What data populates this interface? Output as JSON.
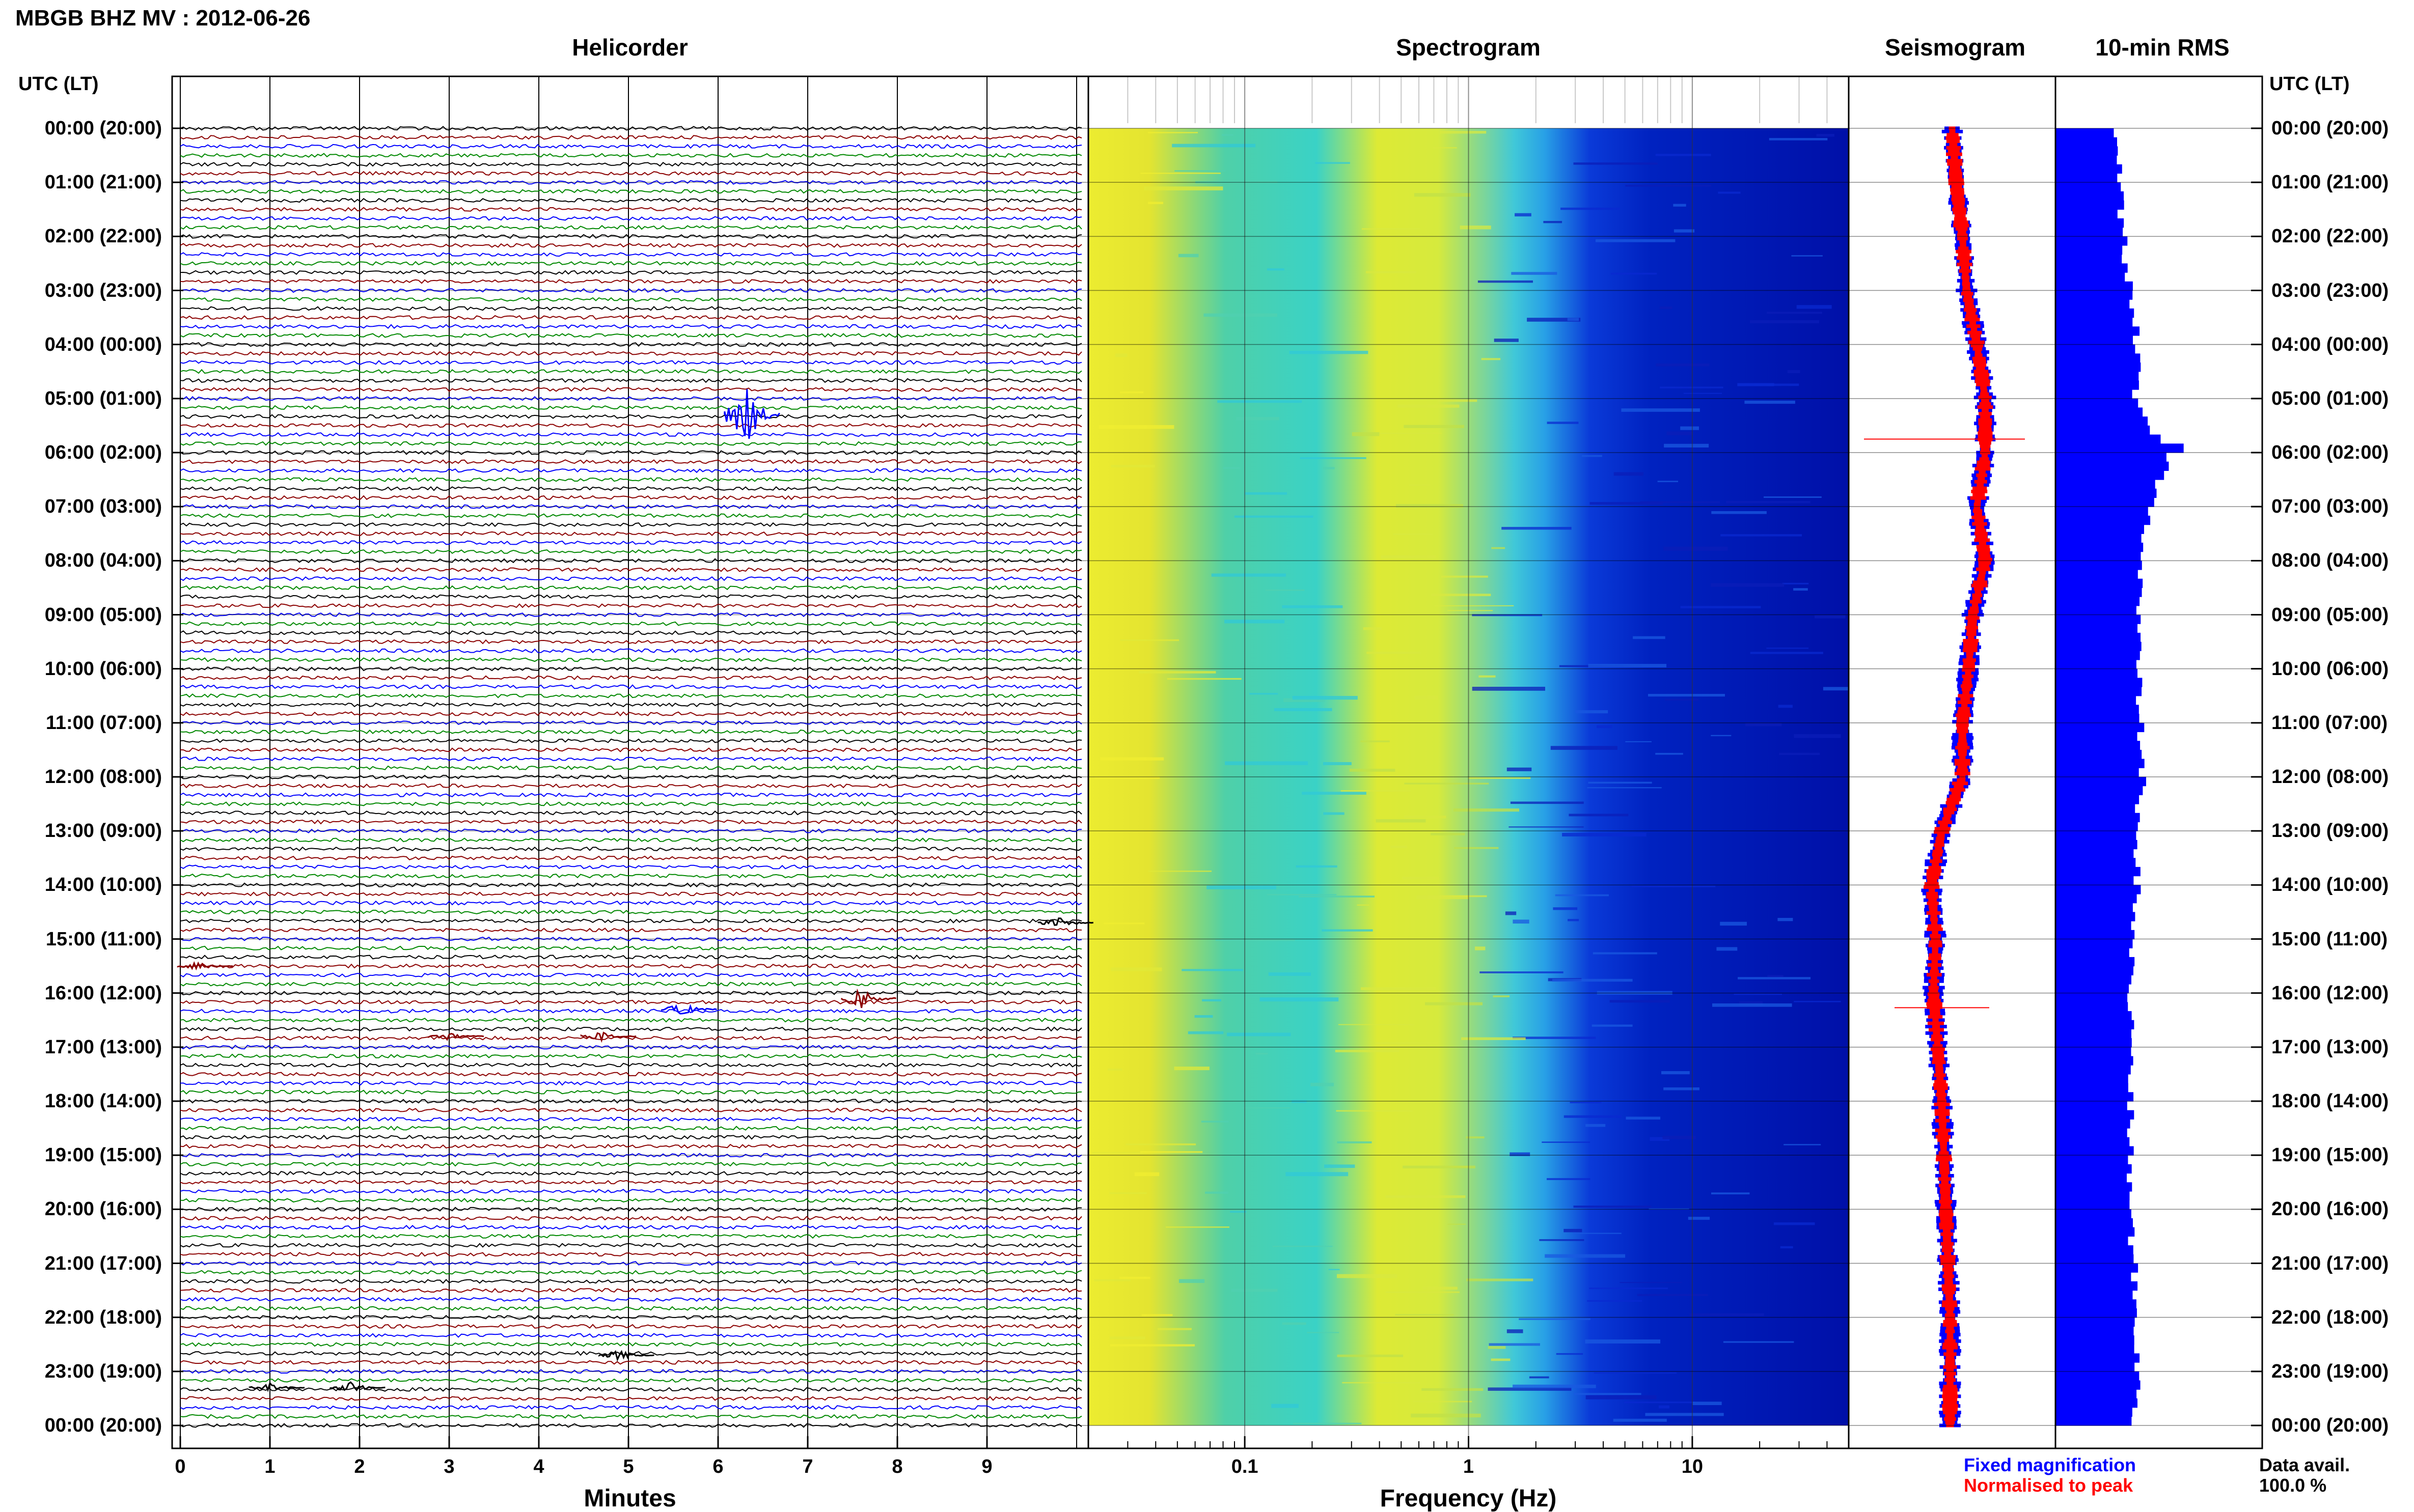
{
  "header": {
    "title": "MBGB BHZ MV : 2012-06-26"
  },
  "panels": {
    "helicorder": "Helicorder",
    "spectrogram": "Spectrogram",
    "seismogram": "Seismogram",
    "rms": "10-min RMS"
  },
  "axes": {
    "utc_header": "UTC (LT)",
    "minutes_label": "Minutes",
    "frequency_label": "Frequency (Hz)"
  },
  "legend": {
    "fixed": "Fixed magnification",
    "normalised": "Normalised to peak",
    "fixed_color": "#0000ff",
    "normalised_color": "#ff0000"
  },
  "availability": {
    "label": "Data avail.",
    "value": "100.0 %"
  },
  "colors": {
    "blue": "#0000ff",
    "red": "#ff0000",
    "green": "#008800",
    "black": "#000000",
    "dark_red": "#8b0000"
  },
  "chart_data": {
    "type": "heatmap",
    "time_labels": [
      "00:00 (20:00)",
      "01:00 (21:00)",
      "02:00 (22:00)",
      "03:00 (23:00)",
      "04:00 (00:00)",
      "05:00 (01:00)",
      "06:00 (02:00)",
      "07:00 (03:00)",
      "08:00 (04:00)",
      "09:00 (05:00)",
      "10:00 (06:00)",
      "11:00 (07:00)",
      "12:00 (08:00)",
      "13:00 (09:00)",
      "14:00 (10:00)",
      "15:00 (11:00)",
      "16:00 (12:00)",
      "17:00 (13:00)",
      "18:00 (14:00)",
      "19:00 (15:00)",
      "20:00 (16:00)",
      "21:00 (17:00)",
      "22:00 (18:00)",
      "23:00 (19:00)",
      "00:00 (20:00)"
    ],
    "minutes_ticks": [
      "0",
      "1",
      "2",
      "3",
      "4",
      "5",
      "6",
      "7",
      "8",
      "9"
    ],
    "frequency_ticks": [
      "0.1",
      "1",
      "10"
    ],
    "frequency_range_hz": [
      0.02,
      50
    ],
    "helicorder_lines_per_hour": 6,
    "helicorder_line_colors": [
      "#000000",
      "#8b0000",
      "#0000ff",
      "#008800"
    ],
    "helicorder_events": [
      {
        "hour": 5.3,
        "minute": 6.3,
        "color": "#0000ff",
        "amp": 4.0
      },
      {
        "hour": 15.5,
        "minute": 0.2,
        "color": "#8b0000",
        "amp": 0.6
      },
      {
        "hour": 14.7,
        "minute": 9.8,
        "color": "#000000",
        "amp": 0.6
      },
      {
        "hour": 16.3,
        "minute": 5.6,
        "color": "#0000ff",
        "amp": 0.8
      },
      {
        "hour": 16.1,
        "minute": 7.6,
        "color": "#8b0000",
        "amp": 1.2
      },
      {
        "hour": 16.8,
        "minute": 3.0,
        "color": "#8b0000",
        "amp": 0.5
      },
      {
        "hour": 16.8,
        "minute": 4.7,
        "color": "#8b0000",
        "amp": 0.6
      },
      {
        "hour": 22.7,
        "minute": 4.9,
        "color": "#000000",
        "amp": 0.6
      },
      {
        "hour": 23.3,
        "minute": 1.0,
        "color": "#000000",
        "amp": 0.5
      },
      {
        "hour": 23.3,
        "minute": 1.9,
        "color": "#000000",
        "amp": 0.7
      }
    ],
    "seismogram_red_center": [
      0.5,
      0.52,
      0.55,
      0.57,
      0.62,
      0.66,
      0.66,
      0.62,
      0.66,
      0.6,
      0.58,
      0.55,
      0.55,
      0.45,
      0.4,
      0.42,
      0.41,
      0.43,
      0.45,
      0.46,
      0.47,
      0.48,
      0.49,
      0.49,
      0.49
    ],
    "rms": [
      0.3,
      0.31,
      0.33,
      0.36,
      0.4,
      0.38,
      0.55,
      0.45,
      0.42,
      0.4,
      0.4,
      0.41,
      0.42,
      0.38,
      0.4,
      0.37,
      0.36,
      0.37,
      0.36,
      0.36,
      0.36,
      0.38,
      0.39,
      0.4,
      0.37
    ]
  }
}
